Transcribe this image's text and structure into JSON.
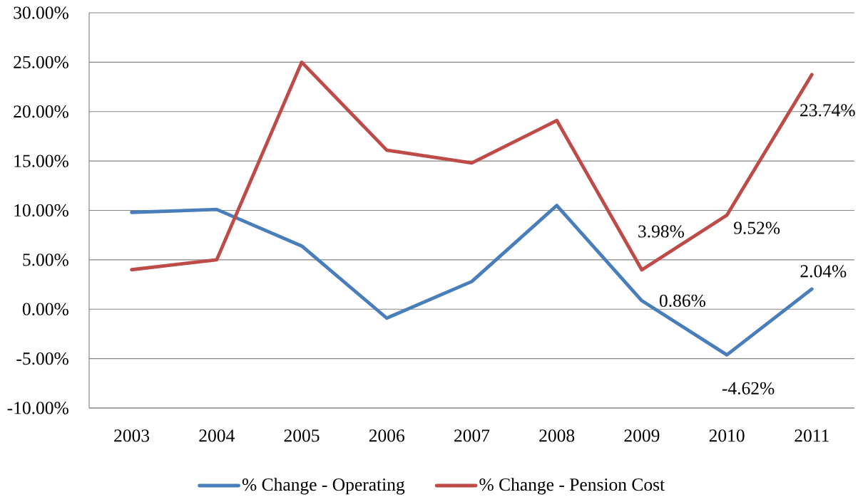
{
  "chart_data": {
    "type": "line",
    "categories": [
      "2003",
      "2004",
      "2005",
      "2006",
      "2007",
      "2008",
      "2009",
      "2010",
      "2011"
    ],
    "series": [
      {
        "name": "% Change - Operating",
        "color": "#4a7ebb",
        "values": [
          9.8,
          10.1,
          6.4,
          -0.9,
          2.8,
          10.5,
          0.86,
          -4.62,
          2.04
        ],
        "value_labels": [
          null,
          null,
          null,
          null,
          null,
          null,
          "0.86%",
          "-4.62%",
          "2.04%"
        ]
      },
      {
        "name": "% Change - Pension Cost",
        "color": "#be4b48",
        "values": [
          4.0,
          5.0,
          25.0,
          16.1,
          14.8,
          19.1,
          3.98,
          9.52,
          23.74
        ],
        "value_labels": [
          null,
          null,
          null,
          null,
          null,
          null,
          "3.98%",
          "9.52%",
          "23.74%"
        ]
      }
    ],
    "ylim": [
      -10,
      30
    ],
    "yticks": [
      {
        "value": -10,
        "label": "-10.00%"
      },
      {
        "value": -5,
        "label": "-5.00%"
      },
      {
        "value": 0,
        "label": "0.00%"
      },
      {
        "value": 5,
        "label": "5.00%"
      },
      {
        "value": 10,
        "label": "10.00%"
      },
      {
        "value": 15,
        "label": "15.00%"
      },
      {
        "value": 20,
        "label": "20.00%"
      },
      {
        "value": 25,
        "label": "25.00%"
      },
      {
        "value": 30,
        "label": "30.00%"
      }
    ],
    "grid": "y",
    "legend": "bottom",
    "marker": "none",
    "line_style": "solid"
  }
}
